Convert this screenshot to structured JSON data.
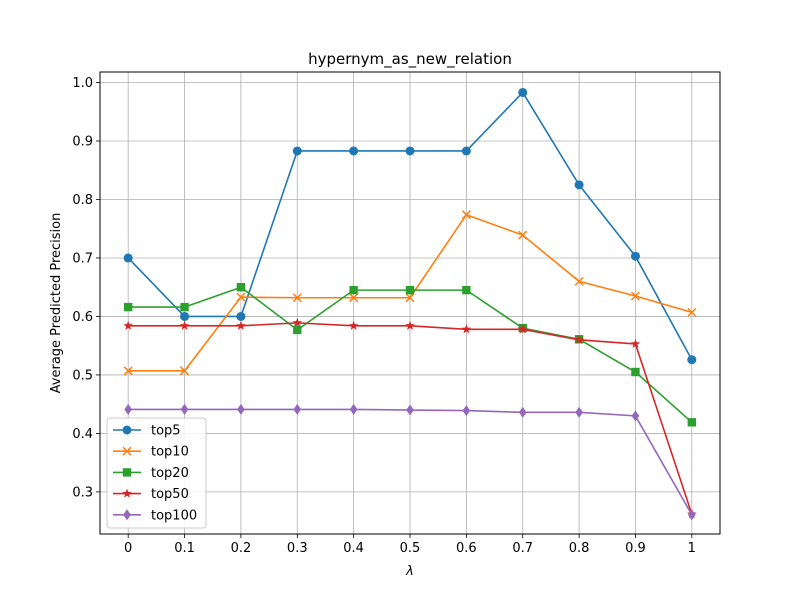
{
  "chart_data": {
    "type": "line",
    "title": "hypernym_as_new_relation",
    "xlabel": "λ",
    "ylabel": "Average Predicted Precision",
    "x": [
      0,
      0.1,
      0.2,
      0.3,
      0.4,
      0.5,
      0.6,
      0.7,
      0.8,
      0.9,
      1
    ],
    "x_tick_labels": [
      "0",
      "0.1",
      "0.2",
      "0.3",
      "0.4",
      "0.5",
      "0.6",
      "0.7",
      "0.8",
      "0.9",
      "1"
    ],
    "y_ticks": [
      0.3,
      0.4,
      0.5,
      0.6,
      0.7,
      0.8,
      0.9,
      1.0
    ],
    "y_tick_labels": [
      "0.3",
      "0.4",
      "0.5",
      "0.6",
      "0.7",
      "0.8",
      "0.9",
      "1.0"
    ],
    "xlim": [
      -0.05,
      1.05
    ],
    "ylim": [
      0.228,
      1.018
    ],
    "grid": true,
    "legend_position": "lower-left",
    "series": [
      {
        "name": "top5",
        "color": "#1f77b4",
        "marker": "circle",
        "values": [
          0.7,
          0.6,
          0.6,
          0.883,
          0.883,
          0.883,
          0.883,
          0.983,
          0.825,
          0.703,
          0.526
        ]
      },
      {
        "name": "top10",
        "color": "#ff7f0e",
        "marker": "x",
        "values": [
          0.507,
          0.507,
          0.633,
          0.632,
          0.632,
          0.632,
          0.774,
          0.739,
          0.66,
          0.635,
          0.607
        ]
      },
      {
        "name": "top20",
        "color": "#2ca02c",
        "marker": "square",
        "values": [
          0.616,
          0.616,
          0.65,
          0.577,
          0.645,
          0.645,
          0.645,
          0.58,
          0.561,
          0.505,
          0.419
        ]
      },
      {
        "name": "top50",
        "color": "#d62728",
        "marker": "star",
        "values": [
          0.584,
          0.584,
          0.584,
          0.589,
          0.584,
          0.584,
          0.578,
          0.578,
          0.56,
          0.553,
          0.262
        ]
      },
      {
        "name": "top100",
        "color": "#9467bd",
        "marker": "diamond",
        "values": [
          0.441,
          0.441,
          0.441,
          0.441,
          0.441,
          0.44,
          0.439,
          0.436,
          0.436,
          0.43,
          0.261
        ]
      }
    ]
  }
}
